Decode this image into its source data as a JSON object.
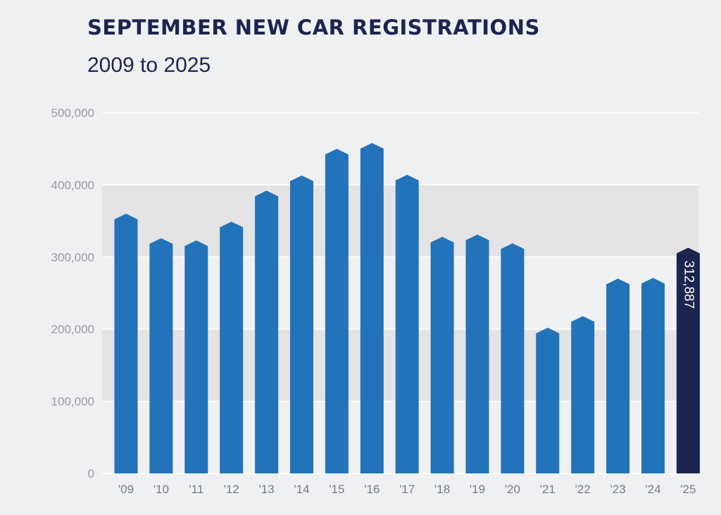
{
  "chart_data": {
    "type": "bar",
    "title": "SEPTEMBER NEW CAR REGISTRATIONS",
    "subtitle": "2009 to 2025",
    "xlabel": "",
    "ylabel": "",
    "ylim": [
      0,
      500000
    ],
    "yticks": [
      0,
      100000,
      200000,
      300000,
      400000,
      500000
    ],
    "ytick_labels": [
      "0",
      "100,000",
      "200,000",
      "300,000",
      "400,000",
      "500,000"
    ],
    "shaded_bands": [
      [
        100000,
        200000
      ],
      [
        300000,
        400000
      ]
    ],
    "categories": [
      "'09",
      "'10",
      "'11",
      "'12",
      "'13",
      "'14",
      "'15",
      "'16",
      "'17",
      "'18",
      "'19",
      "'20",
      "'21",
      "'22",
      "'23",
      "'24",
      "'25"
    ],
    "values": [
      360000,
      326000,
      323000,
      349000,
      392000,
      413000,
      450000,
      458000,
      414000,
      328000,
      331000,
      319000,
      202000,
      218000,
      270000,
      271000,
      312887
    ],
    "highlight_index": 16,
    "highlight_label": "312,887",
    "colors": {
      "bar": "#2273b9",
      "highlight_bar": "#1c2450",
      "band": "#e4e3e5",
      "gridline": "#ffffff",
      "title": "#1c2450"
    },
    "grid": true
  }
}
